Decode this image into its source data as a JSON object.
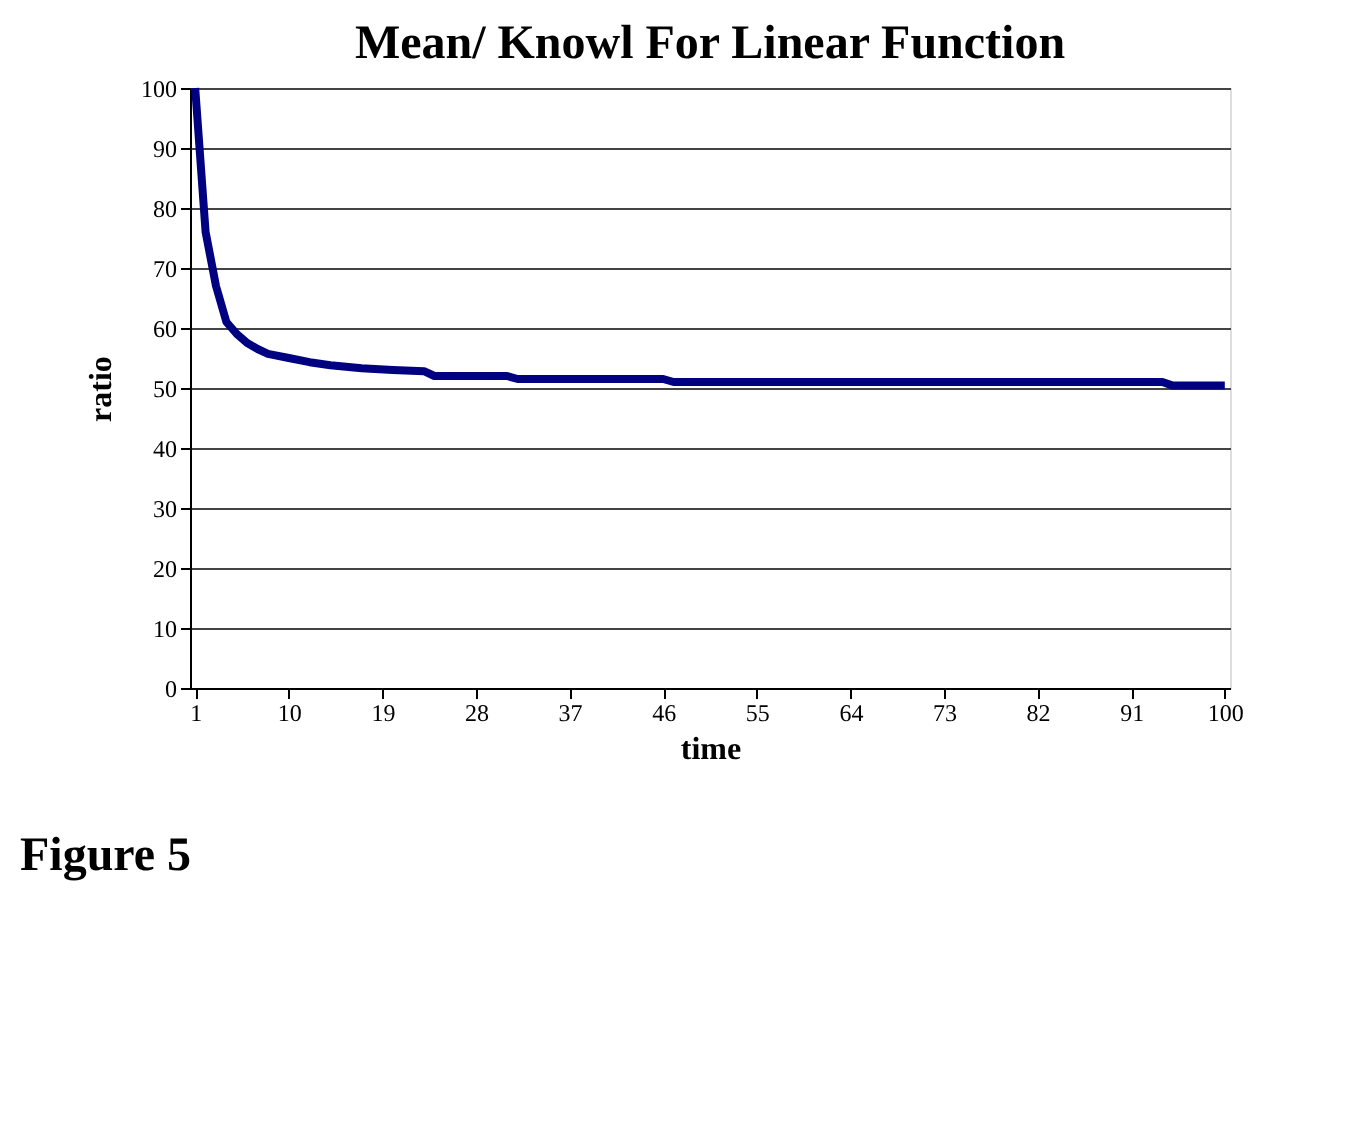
{
  "chart_data": {
    "type": "line",
    "title": "Mean/ Knowl  For Linear Function",
    "xlabel": "time",
    "ylabel": "ratio",
    "annotations": [
      "Figure 5"
    ],
    "x": [
      1,
      2,
      3,
      4,
      5,
      6,
      7,
      8,
      10,
      12,
      14,
      17,
      20,
      23,
      24,
      31,
      32,
      46,
      47,
      94,
      95,
      100
    ],
    "series": [
      {
        "color": "#000080",
        "values": [
          100,
          76,
          67,
          61,
          59,
          57.5,
          56.5,
          55.7,
          55,
          54.3,
          53.8,
          53.3,
          53,
          52.8,
          52,
          52,
          51.5,
          51.5,
          51,
          51,
          50.4,
          50.4
        ]
      }
    ],
    "xlim": [
      0.5,
      100.5
    ],
    "xticks": [
      1,
      10,
      19,
      28,
      37,
      46,
      55,
      64,
      73,
      82,
      91,
      100
    ],
    "ylim": [
      0,
      100
    ],
    "yticks": [
      0,
      10,
      20,
      30,
      40,
      50,
      60,
      70,
      80,
      90,
      100
    ],
    "grid": "y",
    "marker": "none",
    "line_style": "solid"
  }
}
